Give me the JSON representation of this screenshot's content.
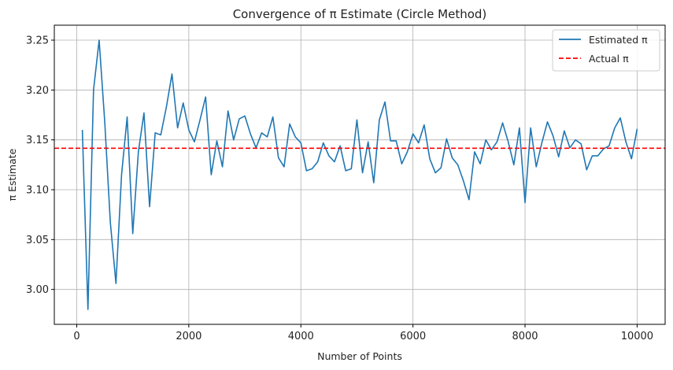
{
  "chart_data": {
    "type": "line",
    "title": "Convergence of π Estimate (Circle Method)",
    "xlabel": "Number of Points",
    "ylabel": "π Estimate",
    "xlim": [
      -400,
      10500
    ],
    "ylim": [
      2.965,
      3.265
    ],
    "xticks": [
      0,
      2000,
      4000,
      6000,
      8000,
      10000
    ],
    "yticks": [
      3.0,
      3.05,
      3.1,
      3.15,
      3.2,
      3.25
    ],
    "xtick_labels": [
      "0",
      "2000",
      "4000",
      "6000",
      "8000",
      "10000"
    ],
    "ytick_labels": [
      "3.00",
      "3.05",
      "3.10",
      "3.15",
      "3.20",
      "3.25"
    ],
    "grid": true,
    "legend_position": "top-right",
    "series": [
      {
        "name": "Estimated π",
        "color": "#1f77b4",
        "style": "solid",
        "x": [
          100,
          200,
          300,
          400,
          500,
          600,
          700,
          800,
          900,
          1000,
          1100,
          1200,
          1300,
          1400,
          1500,
          1600,
          1700,
          1800,
          1900,
          2000,
          2100,
          2200,
          2300,
          2400,
          2500,
          2600,
          2700,
          2800,
          2900,
          3000,
          3100,
          3200,
          3300,
          3400,
          3500,
          3600,
          3700,
          3800,
          3900,
          4000,
          4100,
          4200,
          4300,
          4400,
          4500,
          4600,
          4700,
          4800,
          4900,
          5000,
          5100,
          5200,
          5300,
          5400,
          5500,
          5600,
          5700,
          5800,
          5900,
          6000,
          6100,
          6200,
          6300,
          6400,
          6500,
          6600,
          6700,
          6800,
          6900,
          7000,
          7100,
          7200,
          7300,
          7400,
          7500,
          7600,
          7700,
          7800,
          7900,
          8000,
          8100,
          8200,
          8300,
          8400,
          8500,
          8600,
          8700,
          8800,
          8900,
          9000,
          9100,
          9200,
          9300,
          9400,
          9500,
          9600,
          9700,
          9800,
          9900,
          10000
        ],
        "y": [
          3.16,
          2.98,
          3.2,
          3.25,
          3.168,
          3.067,
          3.006,
          3.115,
          3.173,
          3.056,
          3.138,
          3.177,
          3.083,
          3.157,
          3.155,
          3.183,
          3.216,
          3.162,
          3.187,
          3.16,
          3.148,
          3.17,
          3.193,
          3.115,
          3.149,
          3.123,
          3.179,
          3.15,
          3.171,
          3.174,
          3.156,
          3.142,
          3.157,
          3.153,
          3.173,
          3.132,
          3.123,
          3.166,
          3.153,
          3.147,
          3.119,
          3.121,
          3.128,
          3.147,
          3.134,
          3.128,
          3.144,
          3.119,
          3.121,
          3.17,
          3.117,
          3.148,
          3.107,
          3.17,
          3.188,
          3.149,
          3.149,
          3.126,
          3.138,
          3.156,
          3.147,
          3.165,
          3.131,
          3.117,
          3.122,
          3.151,
          3.132,
          3.125,
          3.109,
          3.09,
          3.138,
          3.126,
          3.15,
          3.14,
          3.148,
          3.167,
          3.148,
          3.125,
          3.162,
          3.087,
          3.162,
          3.123,
          3.147,
          3.168,
          3.154,
          3.133,
          3.159,
          3.142,
          3.15,
          3.146,
          3.12,
          3.134,
          3.134,
          3.141,
          3.144,
          3.162,
          3.172,
          3.148,
          3.131,
          3.161
        ]
      },
      {
        "name": "Actual π",
        "color": "#ff0000",
        "style": "dashed",
        "y_constant": 3.14159
      }
    ]
  }
}
